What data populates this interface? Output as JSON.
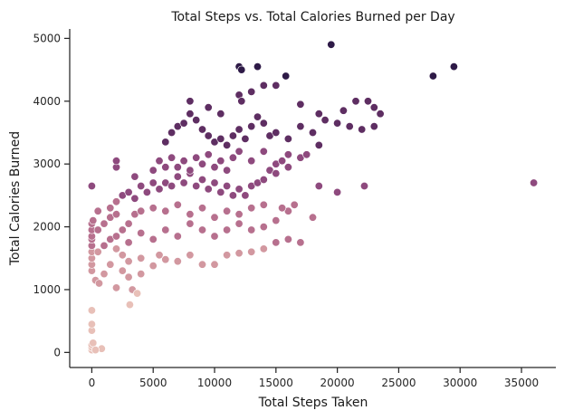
{
  "chart_data": {
    "type": "scatter",
    "title": "Total Steps vs. Total Calories Burned per Day",
    "xlabel": "Total Steps Taken",
    "ylabel": "Total Calories Burned",
    "xlim": [
      -1800,
      37800
    ],
    "ylim": [
      -240,
      5150
    ],
    "xticks": [
      0,
      5000,
      10000,
      15000,
      20000,
      25000,
      30000,
      35000
    ],
    "yticks": [
      0,
      1000,
      2000,
      3000,
      4000,
      5000
    ],
    "grid": false,
    "legend": "none",
    "hue_colors": [
      "#e8c0b8",
      "#d298a0",
      "#b7708e",
      "#8e4a7e",
      "#5e2e62",
      "#2e1a47"
    ],
    "hue_breaks": [
      1000,
      1700,
      2450,
      3300,
      4300
    ],
    "points": [
      [
        0,
        40
      ],
      [
        0,
        80
      ],
      [
        0,
        120
      ],
      [
        100,
        150
      ],
      [
        0,
        350
      ],
      [
        0,
        450
      ],
      [
        0,
        670
      ],
      [
        800,
        60
      ],
      [
        300,
        40
      ],
      [
        0,
        1300
      ],
      [
        0,
        1400
      ],
      [
        0,
        1500
      ],
      [
        0,
        1600
      ],
      [
        0,
        1700
      ],
      [
        0,
        1800
      ],
      [
        0,
        1850
      ],
      [
        0,
        1950
      ],
      [
        0,
        2050
      ],
      [
        100,
        2100
      ],
      [
        0,
        2650
      ],
      [
        300,
        1150
      ],
      [
        600,
        1100
      ],
      [
        1000,
        1250
      ],
      [
        1500,
        1400
      ],
      [
        2000,
        1030
      ],
      [
        2500,
        1300
      ],
      [
        3000,
        1200
      ],
      [
        3300,
        1000
      ],
      [
        3700,
        940
      ],
      [
        3100,
        760
      ],
      [
        4000,
        1250
      ],
      [
        5000,
        1380
      ],
      [
        500,
        1600
      ],
      [
        1000,
        1700
      ],
      [
        1500,
        1800
      ],
      [
        2000,
        1650
      ],
      [
        2500,
        1550
      ],
      [
        3000,
        1450
      ],
      [
        4000,
        1500
      ],
      [
        5500,
        1550
      ],
      [
        6000,
        1480
      ],
      [
        7000,
        1450
      ],
      [
        8000,
        1550
      ],
      [
        9000,
        1400
      ],
      [
        10000,
        1400
      ],
      [
        11000,
        1550
      ],
      [
        12000,
        1580
      ],
      [
        13000,
        1600
      ],
      [
        14000,
        1650
      ],
      [
        15000,
        1750
      ],
      [
        16000,
        1800
      ],
      [
        17000,
        1750
      ],
      [
        500,
        1950
      ],
      [
        1000,
        2050
      ],
      [
        1500,
        2150
      ],
      [
        2000,
        2200
      ],
      [
        2500,
        1950
      ],
      [
        3000,
        2050
      ],
      [
        3500,
        2200
      ],
      [
        4000,
        2250
      ],
      [
        5000,
        2300
      ],
      [
        6000,
        2250
      ],
      [
        7000,
        2350
      ],
      [
        8000,
        2200
      ],
      [
        9000,
        2300
      ],
      [
        10000,
        2150
      ],
      [
        11000,
        2250
      ],
      [
        12000,
        2200
      ],
      [
        13000,
        2300
      ],
      [
        14000,
        2350
      ],
      [
        15000,
        2100
      ],
      [
        16000,
        2250
      ],
      [
        18000,
        2150
      ],
      [
        2000,
        1850
      ],
      [
        3000,
        1750
      ],
      [
        4000,
        1900
      ],
      [
        5000,
        1800
      ],
      [
        6000,
        1950
      ],
      [
        7000,
        1850
      ],
      [
        8000,
        2050
      ],
      [
        9000,
        1950
      ],
      [
        10000,
        1850
      ],
      [
        11000,
        1950
      ],
      [
        12000,
        2050
      ],
      [
        13000,
        1950
      ],
      [
        14000,
        2000
      ],
      [
        15500,
        2300
      ],
      [
        16500,
        2350
      ],
      [
        500,
        2250
      ],
      [
        1500,
        2300
      ],
      [
        2000,
        2400
      ],
      [
        2500,
        2500
      ],
      [
        3000,
        2550
      ],
      [
        3500,
        2450
      ],
      [
        4000,
        2650
      ],
      [
        4500,
        2550
      ],
      [
        5000,
        2700
      ],
      [
        5500,
        2600
      ],
      [
        6000,
        2700
      ],
      [
        6500,
        2650
      ],
      [
        7000,
        2800
      ],
      [
        7500,
        2700
      ],
      [
        8000,
        2850
      ],
      [
        8500,
        2650
      ],
      [
        9000,
        2750
      ],
      [
        9500,
        2600
      ],
      [
        10000,
        2700
      ],
      [
        10500,
        2550
      ],
      [
        11000,
        2650
      ],
      [
        11500,
        2500
      ],
      [
        12000,
        2600
      ],
      [
        12500,
        2500
      ],
      [
        13000,
        2650
      ],
      [
        13500,
        2700
      ],
      [
        14000,
        2750
      ],
      [
        14500,
        2900
      ],
      [
        15000,
        3000
      ],
      [
        15500,
        3050
      ],
      [
        16000,
        2950
      ],
      [
        17000,
        3100
      ],
      [
        18500,
        2650
      ],
      [
        20000,
        2550
      ],
      [
        22200,
        2650
      ],
      [
        36000,
        2700
      ],
      [
        2000,
        2950
      ],
      [
        2000,
        3050
      ],
      [
        3500,
        2800
      ],
      [
        5000,
        2900
      ],
      [
        5500,
        3050
      ],
      [
        6000,
        2950
      ],
      [
        6500,
        3100
      ],
      [
        7000,
        2950
      ],
      [
        7500,
        3050
      ],
      [
        8000,
        2900
      ],
      [
        8500,
        3100
      ],
      [
        9000,
        3000
      ],
      [
        9500,
        3150
      ],
      [
        10000,
        2950
      ],
      [
        10500,
        3050
      ],
      [
        11000,
        2900
      ],
      [
        11500,
        3100
      ],
      [
        12000,
        3200
      ],
      [
        13000,
        3050
      ],
      [
        14000,
        3200
      ],
      [
        15000,
        2850
      ],
      [
        16000,
        3150
      ],
      [
        17500,
        3150
      ],
      [
        18500,
        3300
      ],
      [
        6000,
        3350
      ],
      [
        6500,
        3500
      ],
      [
        7000,
        3600
      ],
      [
        7500,
        3650
      ],
      [
        8000,
        3800
      ],
      [
        8500,
        3700
      ],
      [
        9000,
        3550
      ],
      [
        9500,
        3450
      ],
      [
        10000,
        3350
      ],
      [
        10500,
        3400
      ],
      [
        11000,
        3300
      ],
      [
        11500,
        3450
      ],
      [
        12000,
        3550
      ],
      [
        12500,
        3400
      ],
      [
        13000,
        3600
      ],
      [
        13500,
        3750
      ],
      [
        14000,
        3650
      ],
      [
        14500,
        3450
      ],
      [
        15000,
        3500
      ],
      [
        16000,
        3400
      ],
      [
        17000,
        3600
      ],
      [
        18000,
        3500
      ],
      [
        19000,
        3700
      ],
      [
        20000,
        3650
      ],
      [
        21000,
        3600
      ],
      [
        22000,
        3550
      ],
      [
        23000,
        3600
      ],
      [
        23500,
        3800
      ],
      [
        8000,
        4000
      ],
      [
        9500,
        3900
      ],
      [
        10500,
        3800
      ],
      [
        12000,
        4100
      ],
      [
        12200,
        4000
      ],
      [
        13000,
        4150
      ],
      [
        14000,
        4250
      ],
      [
        15000,
        4250
      ],
      [
        17000,
        3950
      ],
      [
        18500,
        3800
      ],
      [
        20500,
        3850
      ],
      [
        21500,
        4000
      ],
      [
        22500,
        4000
      ],
      [
        23000,
        3900
      ],
      [
        12000,
        4550
      ],
      [
        12200,
        4500
      ],
      [
        13500,
        4550
      ],
      [
        15800,
        4400
      ],
      [
        27800,
        4400
      ],
      [
        29500,
        4550
      ],
      [
        19500,
        4900
      ]
    ]
  }
}
